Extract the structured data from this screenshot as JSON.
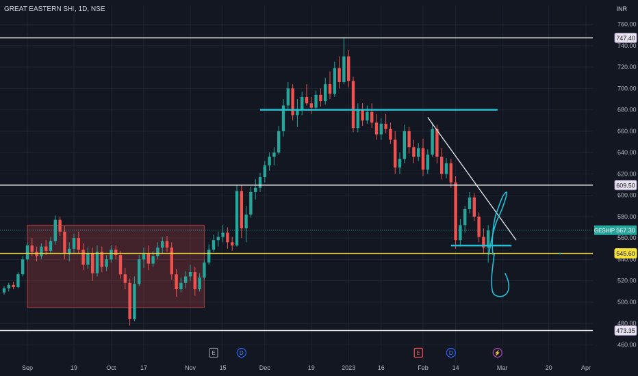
{
  "header": {
    "title": "GREAT EASTERN SHI, 1D, NSE",
    "currency": "INR"
  },
  "colors": {
    "bg": "#131722",
    "grid": "#1f2433",
    "up": "#26a69a",
    "down": "#ef5350",
    "text": "#b2b5be",
    "cyan": "#22c1d6",
    "white": "#f0f0f0",
    "yellow": "#f5e03a"
  },
  "chart_data": {
    "type": "candlestick",
    "y_range": [
      450,
      770
    ],
    "y_ticks": [
      "760.00",
      "740.00",
      "720.00",
      "700.00",
      "680.00",
      "660.00",
      "640.00",
      "620.00",
      "600.00",
      "580.00",
      "560.00",
      "540.00",
      "520.00",
      "500.00",
      "480.00",
      "460.00"
    ],
    "x_ticks": [
      {
        "label": "Sep",
        "bar": 5
      },
      {
        "label": "19",
        "bar": 15
      },
      {
        "label": "Oct",
        "bar": 23
      },
      {
        "label": "17",
        "bar": 30
      },
      {
        "label": "Nov",
        "bar": 40
      },
      {
        "label": "15",
        "bar": 47
      },
      {
        "label": "Dec",
        "bar": 56
      },
      {
        "label": "19",
        "bar": 66
      },
      {
        "label": "2023",
        "bar": 74
      },
      {
        "label": "16",
        "bar": 81
      },
      {
        "label": "Feb",
        "bar": 90
      },
      {
        "label": "14",
        "bar": 97
      },
      {
        "label": "Mar",
        "bar": 107
      },
      {
        "label": "20",
        "bar": 117
      },
      {
        "label": "Apr",
        "bar": 125
      }
    ],
    "price_levels": [
      {
        "value": 747.4,
        "label": "747.40",
        "color": "white"
      },
      {
        "value": 609.5,
        "label": "609.50",
        "color": "white"
      },
      {
        "value": 545.6,
        "label": "545.60",
        "color": "yellow"
      },
      {
        "value": 473.35,
        "label": "473.35",
        "color": "white"
      }
    ],
    "last_price": {
      "symbol": "GESHIP",
      "value": 567.3,
      "label": "567.30"
    },
    "zone": {
      "bar_from": 5,
      "bar_to": 43,
      "low": 495,
      "high": 572
    },
    "resistance_line": {
      "bar_from": 55,
      "bar_to": 106,
      "value": 680
    },
    "trendline": {
      "bar_from": 91,
      "bar_to": 110,
      "from": 673,
      "to": 558
    },
    "support_line": {
      "bar_from": 96,
      "bar_to": 109,
      "value": 553
    },
    "event_markers": [
      {
        "label": "E",
        "bar": 45,
        "kind": "earnings"
      },
      {
        "label": "D",
        "bar": 51,
        "kind": "dividend"
      },
      {
        "label": "E",
        "bar": 89,
        "kind": "earnings-red"
      },
      {
        "label": "D",
        "bar": 96,
        "kind": "dividend"
      },
      {
        "label": "⚡",
        "bar": 106,
        "kind": "split"
      }
    ],
    "candles": [
      [
        509,
        515,
        507,
        513
      ],
      [
        513,
        518,
        510,
        516
      ],
      [
        516,
        519,
        512,
        514
      ],
      [
        514,
        528,
        513,
        526
      ],
      [
        526,
        543,
        524,
        540
      ],
      [
        540,
        556,
        538,
        553
      ],
      [
        553,
        560,
        543,
        547
      ],
      [
        547,
        552,
        538,
        543
      ],
      [
        543,
        555,
        540,
        552
      ],
      [
        552,
        558,
        544,
        548
      ],
      [
        548,
        561,
        545,
        557
      ],
      [
        557,
        581,
        554,
        577
      ],
      [
        577,
        580,
        562,
        566
      ],
      [
        566,
        571,
        540,
        545
      ],
      [
        545,
        556,
        538,
        550
      ],
      [
        550,
        564,
        546,
        560
      ],
      [
        560,
        566,
        546,
        549
      ],
      [
        549,
        555,
        530,
        535
      ],
      [
        535,
        551,
        531,
        546
      ],
      [
        546,
        551,
        520,
        527
      ],
      [
        527,
        553,
        524,
        547
      ],
      [
        547,
        552,
        528,
        533
      ],
      [
        533,
        544,
        529,
        540
      ],
      [
        540,
        553,
        537,
        549
      ],
      [
        549,
        553,
        540,
        544
      ],
      [
        544,
        548,
        522,
        526
      ],
      [
        526,
        532,
        512,
        518
      ],
      [
        518,
        522,
        478,
        484
      ],
      [
        484,
        524,
        482,
        517
      ],
      [
        517,
        544,
        515,
        540
      ],
      [
        540,
        551,
        532,
        545
      ],
      [
        545,
        553,
        530,
        536
      ],
      [
        536,
        548,
        533,
        543
      ],
      [
        543,
        556,
        540,
        551
      ],
      [
        551,
        561,
        545,
        557
      ],
      [
        557,
        562,
        547,
        551
      ],
      [
        551,
        556,
        521,
        526
      ],
      [
        526,
        531,
        505,
        512
      ],
      [
        512,
        523,
        509,
        518
      ],
      [
        518,
        529,
        513,
        524
      ],
      [
        524,
        535,
        520,
        528
      ],
      [
        528,
        533,
        506,
        512
      ],
      [
        512,
        527,
        510,
        523
      ],
      [
        523,
        540,
        521,
        537
      ],
      [
        537,
        554,
        535,
        549
      ],
      [
        549,
        563,
        547,
        558
      ],
      [
        558,
        566,
        552,
        561
      ],
      [
        561,
        572,
        556,
        565
      ],
      [
        565,
        570,
        550,
        556
      ],
      [
        556,
        561,
        548,
        553
      ],
      [
        553,
        610,
        552,
        604
      ],
      [
        604,
        610,
        560,
        569
      ],
      [
        569,
        590,
        556,
        582
      ],
      [
        582,
        608,
        579,
        603
      ],
      [
        603,
        615,
        596,
        607
      ],
      [
        607,
        621,
        603,
        617
      ],
      [
        617,
        632,
        612,
        628
      ],
      [
        628,
        640,
        623,
        636
      ],
      [
        636,
        645,
        628,
        640
      ],
      [
        640,
        665,
        638,
        660
      ],
      [
        660,
        690,
        655,
        684
      ],
      [
        684,
        706,
        680,
        700
      ],
      [
        700,
        704,
        670,
        675
      ],
      [
        675,
        690,
        664,
        680
      ],
      [
        680,
        697,
        675,
        692
      ],
      [
        692,
        704,
        684,
        686
      ],
      [
        686,
        692,
        676,
        682
      ],
      [
        682,
        698,
        680,
        694
      ],
      [
        694,
        700,
        683,
        688
      ],
      [
        688,
        710,
        685,
        704
      ],
      [
        704,
        716,
        690,
        695
      ],
      [
        695,
        725,
        692,
        719
      ],
      [
        719,
        730,
        700,
        706
      ],
      [
        706,
        748,
        704,
        730
      ],
      [
        730,
        736,
        701,
        707
      ],
      [
        707,
        711,
        659,
        663
      ],
      [
        663,
        686,
        659,
        680
      ],
      [
        680,
        686,
        665,
        670
      ],
      [
        670,
        684,
        667,
        678
      ],
      [
        678,
        686,
        663,
        668
      ],
      [
        668,
        676,
        652,
        657
      ],
      [
        657,
        672,
        652,
        667
      ],
      [
        667,
        676,
        658,
        662
      ],
      [
        662,
        668,
        648,
        652
      ],
      [
        652,
        660,
        620,
        626
      ],
      [
        626,
        640,
        620,
        634
      ],
      [
        634,
        666,
        630,
        660
      ],
      [
        660,
        664,
        639,
        645
      ],
      [
        645,
        652,
        630,
        636
      ],
      [
        636,
        649,
        632,
        644
      ],
      [
        644,
        653,
        618,
        624
      ],
      [
        624,
        643,
        620,
        638
      ],
      [
        638,
        668,
        636,
        662
      ],
      [
        662,
        666,
        630,
        636
      ],
      [
        636,
        644,
        615,
        620
      ],
      [
        620,
        635,
        616,
        630
      ],
      [
        630,
        634,
        607,
        612
      ],
      [
        612,
        618,
        550,
        558
      ],
      [
        558,
        578,
        552,
        572
      ],
      [
        572,
        590,
        565,
        587
      ],
      [
        587,
        603,
        583,
        598
      ],
      [
        598,
        602,
        576,
        580
      ],
      [
        580,
        584,
        556,
        561
      ],
      [
        561,
        569,
        545,
        551
      ],
      [
        551,
        572,
        537,
        567
      ]
    ]
  }
}
